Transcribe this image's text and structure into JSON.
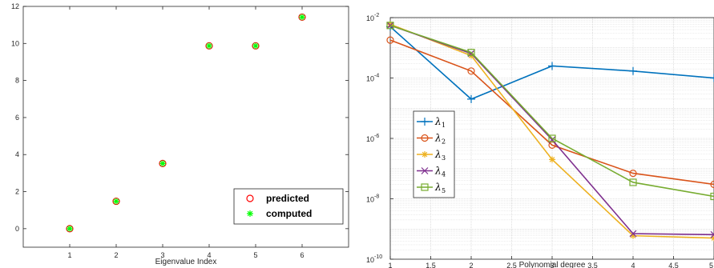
{
  "chart_data": [
    {
      "type": "scatter",
      "xlabel": "Eigenvalue Index",
      "ylabel": "",
      "xlim": [
        0,
        7
      ],
      "ylim": [
        -1,
        12
      ],
      "xticks": [
        "1",
        "2",
        "3",
        "4",
        "5",
        "6"
      ],
      "yticks": [
        "0",
        "2",
        "4",
        "6",
        "8",
        "10",
        "12"
      ],
      "grid": false,
      "legend_position": "bottom-right",
      "x": [
        1,
        2,
        3,
        4,
        5,
        6
      ],
      "series": [
        {
          "name": "predicted",
          "marker": "circle",
          "color": "#ff0000",
          "values": [
            0,
            1.48,
            3.52,
            9.87,
            9.87,
            11.42
          ]
        },
        {
          "name": "computed",
          "marker": "asterisk",
          "color": "#00ff00",
          "values": [
            0,
            1.48,
            3.52,
            9.87,
            9.87,
            11.42
          ]
        }
      ]
    },
    {
      "type": "line",
      "xlabel": "Polynomial degree",
      "ylabel": "",
      "xlim": [
        1,
        5
      ],
      "ylim": [
        1e-10,
        0.01
      ],
      "yscale": "log",
      "xticks": [
        "1",
        "1.5",
        "2",
        "2.5",
        "3",
        "3.5",
        "4",
        "4.5",
        "5"
      ],
      "yticks": [
        {
          "base": "10",
          "exp": "-10"
        },
        {
          "base": "10",
          "exp": "-8"
        },
        {
          "base": "10",
          "exp": "-6"
        },
        {
          "base": "10",
          "exp": "-4"
        },
        {
          "base": "10",
          "exp": "-2"
        }
      ],
      "grid": true,
      "legend_position": "middle-left",
      "x": [
        1,
        2,
        3,
        4,
        5
      ],
      "series": [
        {
          "name": "λ",
          "sub": "1",
          "marker": "plus",
          "color": "#0072bd",
          "values": [
            0.005,
            2e-05,
            0.00025,
            0.00017,
            0.0001
          ]
        },
        {
          "name": "λ",
          "sub": "2",
          "marker": "circle",
          "color": "#d95319",
          "values": [
            0.0018,
            0.00017,
            6e-07,
            7e-08,
            3e-08
          ]
        },
        {
          "name": "λ",
          "sub": "3",
          "marker": "asterisk",
          "color": "#edb120",
          "values": [
            0.006,
            0.00055,
            2e-07,
            6e-10,
            5e-10
          ]
        },
        {
          "name": "λ",
          "sub": "4",
          "marker": "x",
          "color": "#7e2f8e",
          "values": [
            0.0055,
            0.00065,
            9e-07,
            7e-10,
            6.5e-10
          ]
        },
        {
          "name": "λ",
          "sub": "5",
          "marker": "square",
          "color": "#77ac30",
          "values": [
            0.0055,
            0.0007,
            1e-06,
            3.5e-08,
            1.2e-08
          ]
        }
      ]
    }
  ]
}
